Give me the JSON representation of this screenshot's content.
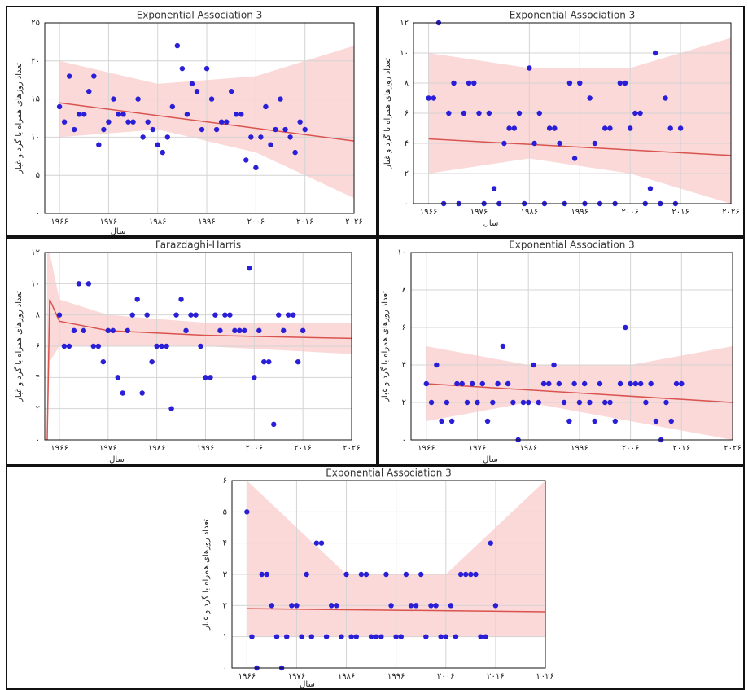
{
  "chart_data": [
    {
      "type": "scatter",
      "title": "Exponential Association 3",
      "xlabel": "سال",
      "ylabel": "تعداد روزهای همراه با گرد و غبار",
      "xlim": [
        1963,
        2026
      ],
      "ylim": [
        0,
        25
      ],
      "xticks": [
        {
          "value": 1966,
          "label": "۱۹۶۶"
        },
        {
          "value": 1976,
          "label": "۱۹۷۶"
        },
        {
          "value": 1986,
          "label": "۱۹۸۶"
        },
        {
          "value": 1996,
          "label": "۱۹۹۶"
        },
        {
          "value": 2006,
          "label": "۲۰۰۶"
        },
        {
          "value": 2016,
          "label": "۲۰۱۶"
        },
        {
          "value": 2026,
          "label": "۲۰۲۶"
        }
      ],
      "yticks": [
        {
          "value": 0,
          "label": "۰"
        },
        {
          "value": 5,
          "label": "۵"
        },
        {
          "value": 10,
          "label": "۱۰"
        },
        {
          "value": 15,
          "label": "۱۵"
        },
        {
          "value": 20,
          "label": "۲۰"
        },
        {
          "value": 25,
          "label": "۲۵"
        }
      ],
      "points": {
        "color": "#2a1fd6",
        "x": [
          1966,
          1967,
          1968,
          1969,
          1970,
          1971,
          1972,
          1973,
          1974,
          1975,
          1976,
          1977,
          1978,
          1979,
          1980,
          1981,
          1982,
          1983,
          1984,
          1985,
          1986,
          1987,
          1988,
          1989,
          1990,
          1991,
          1992,
          1993,
          1994,
          1995,
          1996,
          1997,
          1998,
          1999,
          2000,
          2001,
          2002,
          2003,
          2004,
          2005,
          2006,
          2007,
          2008,
          2009,
          2010,
          2011,
          2012,
          2013,
          2014,
          2015,
          2016
        ],
        "y": [
          14,
          12,
          18,
          11,
          13,
          13,
          16,
          18,
          9,
          11,
          12,
          15,
          13,
          13,
          12,
          12,
          15,
          10,
          12,
          11,
          9,
          8,
          10,
          14,
          22,
          19,
          13,
          17,
          16,
          11,
          19,
          15,
          11,
          12,
          12,
          16,
          13,
          13,
          7,
          10,
          6,
          10,
          14,
          9,
          11,
          15,
          11,
          10,
          8,
          12,
          11
        ]
      },
      "fit": {
        "color": "#d9534f",
        "x": [
          1966,
          2026
        ],
        "y": [
          14.5,
          9.5
        ]
      },
      "band": {
        "color": "#f7b9b9",
        "x": [
          1966,
          1986,
          2006,
          2026
        ],
        "lower": [
          10,
          11,
          8,
          2
        ],
        "upper": [
          20,
          17,
          18,
          22
        ]
      }
    },
    {
      "type": "scatter",
      "title": "Exponential Association 3",
      "xlabel": "سال",
      "ylabel": "تعداد روزهای همراه با گرد و غبار",
      "xlim": [
        1963,
        2026
      ],
      "ylim": [
        0,
        12
      ],
      "xticks": [
        {
          "value": 1966,
          "label": "۱۹۶۶"
        },
        {
          "value": 1976,
          "label": "۱۹۷۶"
        },
        {
          "value": 1986,
          "label": "۱۹۸۶"
        },
        {
          "value": 1996,
          "label": "۱۹۹۶"
        },
        {
          "value": 2006,
          "label": "۲۰۰۶"
        },
        {
          "value": 2016,
          "label": "۲۰۱۶"
        },
        {
          "value": 2026,
          "label": "۲۰۲۶"
        }
      ],
      "yticks": [
        {
          "value": 0,
          "label": "۰"
        },
        {
          "value": 2,
          "label": "۲"
        },
        {
          "value": 4,
          "label": "۴"
        },
        {
          "value": 6,
          "label": "۶"
        },
        {
          "value": 8,
          "label": "۸"
        },
        {
          "value": 10,
          "label": "۱۰"
        },
        {
          "value": 12,
          "label": "۱۲"
        }
      ],
      "points": {
        "color": "#2a1fd6",
        "x": [
          1966,
          1967,
          1968,
          1969,
          1970,
          1971,
          1972,
          1973,
          1974,
          1975,
          1976,
          1977,
          1978,
          1979,
          1980,
          1981,
          1982,
          1983,
          1984,
          1985,
          1986,
          1987,
          1988,
          1989,
          1990,
          1991,
          1992,
          1993,
          1994,
          1995,
          1996,
          1997,
          1998,
          1999,
          2000,
          2001,
          2002,
          2003,
          2004,
          2005,
          2006,
          2007,
          2008,
          2009,
          2010,
          2011,
          2012,
          2013,
          2014,
          2015,
          2016
        ],
        "y": [
          7,
          7,
          12,
          0,
          6,
          8,
          0,
          6,
          8,
          8,
          6,
          0,
          6,
          1,
          0,
          4,
          5,
          5,
          6,
          0,
          9,
          4,
          6,
          0,
          5,
          5,
          4,
          0,
          8,
          3,
          8,
          0,
          7,
          4,
          0,
          5,
          5,
          0,
          8,
          8,
          5,
          6,
          6,
          0,
          1,
          10,
          0,
          7,
          5,
          0,
          5
        ]
      },
      "fit": {
        "color": "#d9534f",
        "x": [
          1966,
          2026
        ],
        "y": [
          4.3,
          3.2
        ]
      },
      "band": {
        "color": "#f7b9b9",
        "x": [
          1966,
          1986,
          2006,
          2026
        ],
        "lower": [
          2,
          3,
          2,
          0
        ],
        "upper": [
          10,
          9,
          9,
          11
        ]
      }
    },
    {
      "type": "scatter",
      "title": "Farazdaghi-Harris",
      "xlabel": "سال",
      "ylabel": "تعداد روزهای همراه با گرد و غبار",
      "xlim": [
        1963,
        2026
      ],
      "ylim": [
        0,
        12
      ],
      "xticks": [
        {
          "value": 1966,
          "label": "۱۹۶۶"
        },
        {
          "value": 1976,
          "label": "۱۹۷۶"
        },
        {
          "value": 1986,
          "label": "۱۹۸۶"
        },
        {
          "value": 1996,
          "label": "۱۹۹۶"
        },
        {
          "value": 2006,
          "label": "۲۰۰۶"
        },
        {
          "value": 2016,
          "label": "۲۰۱۶"
        },
        {
          "value": 2026,
          "label": "۲۰۲۶"
        }
      ],
      "yticks": [
        {
          "value": 0,
          "label": "۰"
        },
        {
          "value": 2,
          "label": "۲"
        },
        {
          "value": 4,
          "label": "۴"
        },
        {
          "value": 6,
          "label": "۶"
        },
        {
          "value": 8,
          "label": "۸"
        },
        {
          "value": 10,
          "label": "۱۰"
        },
        {
          "value": 12,
          "label": "۱۲"
        }
      ],
      "points": {
        "color": "#2a1fd6",
        "x": [
          1966,
          1967,
          1968,
          1969,
          1970,
          1971,
          1972,
          1973,
          1974,
          1975,
          1976,
          1977,
          1978,
          1979,
          1980,
          1981,
          1982,
          1983,
          1984,
          1985,
          1986,
          1987,
          1988,
          1989,
          1990,
          1991,
          1992,
          1993,
          1994,
          1995,
          1996,
          1997,
          1998,
          1999,
          2000,
          2001,
          2002,
          2003,
          2004,
          2005,
          2006,
          2007,
          2008,
          2009,
          2010,
          2011,
          2012,
          2013,
          2014,
          2015,
          2016
        ],
        "y": [
          8,
          6,
          6,
          7,
          10,
          7,
          10,
          6,
          6,
          5,
          7,
          7,
          4,
          3,
          7,
          8,
          9,
          3,
          8,
          5,
          6,
          6,
          6,
          2,
          8,
          9,
          7,
          8,
          8,
          6,
          4,
          4,
          8,
          7,
          8,
          8,
          7,
          7,
          7,
          11,
          4,
          7,
          5,
          5,
          1,
          8,
          7,
          8,
          8,
          5,
          7
        ]
      },
      "fit": {
        "color": "#d9534f",
        "x": [
          1963.5,
          1964,
          1966,
          1976,
          1996,
          2026
        ],
        "y": [
          0,
          9,
          7.6,
          7,
          6.7,
          6.5
        ]
      },
      "band": {
        "color": "#f7b9b9",
        "x": [
          1963.5,
          1964,
          1966,
          1976,
          1996,
          2026
        ],
        "lower": [
          0,
          5,
          6,
          6,
          6,
          5.5
        ],
        "upper": [
          12,
          12,
          9,
          8,
          7.5,
          7.5
        ]
      }
    },
    {
      "type": "scatter",
      "title": "Exponential Association 3",
      "xlabel": "سال",
      "ylabel": "تعداد روزهای همراه با گرد و غبار",
      "xlim": [
        1963,
        2026
      ],
      "ylim": [
        0,
        10
      ],
      "xticks": [
        {
          "value": 1966,
          "label": "۱۹۶۶"
        },
        {
          "value": 1976,
          "label": "۱۹۷۶"
        },
        {
          "value": 1986,
          "label": "۱۹۸۶"
        },
        {
          "value": 1996,
          "label": "۱۹۹۶"
        },
        {
          "value": 2006,
          "label": "۲۰۰۶"
        },
        {
          "value": 2016,
          "label": "۲۰۱۶"
        },
        {
          "value": 2026,
          "label": "۲۰۲۶"
        }
      ],
      "yticks": [
        {
          "value": 0,
          "label": "۰"
        },
        {
          "value": 2,
          "label": "۲"
        },
        {
          "value": 4,
          "label": "۴"
        },
        {
          "value": 6,
          "label": "۶"
        },
        {
          "value": 8,
          "label": "۸"
        },
        {
          "value": 10,
          "label": "۱۰"
        }
      ],
      "points": {
        "color": "#2a1fd6",
        "x": [
          1966,
          1967,
          1968,
          1969,
          1970,
          1971,
          1972,
          1973,
          1974,
          1975,
          1976,
          1977,
          1978,
          1979,
          1980,
          1981,
          1982,
          1983,
          1984,
          1985,
          1986,
          1987,
          1988,
          1989,
          1990,
          1991,
          1992,
          1993,
          1994,
          1995,
          1996,
          1997,
          1998,
          1999,
          2000,
          2001,
          2002,
          2003,
          2004,
          2005,
          2006,
          2007,
          2008,
          2009,
          2010,
          2011,
          2012,
          2013,
          2014,
          2015,
          2016
        ],
        "y": [
          3,
          2,
          4,
          1,
          2,
          1,
          3,
          3,
          2,
          3,
          2,
          3,
          1,
          2,
          3,
          5,
          3,
          2,
          0,
          2,
          2,
          4,
          2,
          3,
          3,
          4,
          3,
          2,
          1,
          3,
          2,
          3,
          2,
          1,
          3,
          2,
          2,
          1,
          3,
          6,
          3,
          3,
          3,
          2,
          3,
          1,
          0,
          2,
          1,
          3,
          3
        ]
      },
      "fit": {
        "color": "#d9534f",
        "x": [
          1966,
          2026
        ],
        "y": [
          3,
          2
        ]
      },
      "band": {
        "color": "#f7b9b9",
        "x": [
          1966,
          1986,
          2006,
          2026
        ],
        "lower": [
          1,
          2,
          1,
          0
        ],
        "upper": [
          5,
          4,
          4,
          5
        ]
      }
    },
    {
      "type": "scatter",
      "title": "Exponential Association 3",
      "xlabel": "سال",
      "ylabel": "تعداد روزهای همراه با گرد و غبار",
      "xlim": [
        1963,
        2026
      ],
      "ylim": [
        0,
        6
      ],
      "xticks": [
        {
          "value": 1966,
          "label": "۱۹۶۶"
        },
        {
          "value": 1976,
          "label": "۱۹۷۶"
        },
        {
          "value": 1986,
          "label": "۱۹۸۶"
        },
        {
          "value": 1996,
          "label": "۱۹۹۶"
        },
        {
          "value": 2006,
          "label": "۲۰۰۶"
        },
        {
          "value": 2016,
          "label": "۲۰۱۶"
        },
        {
          "value": 2026,
          "label": "۲۰۲۶"
        }
      ],
      "yticks": [
        {
          "value": 0,
          "label": "۰"
        },
        {
          "value": 1,
          "label": "۱"
        },
        {
          "value": 2,
          "label": "۲"
        },
        {
          "value": 3,
          "label": "۳"
        },
        {
          "value": 4,
          "label": "۴"
        },
        {
          "value": 5,
          "label": "۵"
        },
        {
          "value": 6,
          "label": "۶"
        }
      ],
      "points": {
        "color": "#2a1fd6",
        "x": [
          1966,
          1967,
          1968,
          1969,
          1970,
          1971,
          1972,
          1973,
          1974,
          1975,
          1976,
          1977,
          1978,
          1979,
          1980,
          1981,
          1982,
          1983,
          1984,
          1985,
          1986,
          1987,
          1988,
          1989,
          1990,
          1991,
          1992,
          1993,
          1994,
          1995,
          1996,
          1997,
          1998,
          1999,
          2000,
          2001,
          2002,
          2003,
          2004,
          2005,
          2006,
          2007,
          2008,
          2009,
          2010,
          2011,
          2012,
          2013,
          2014,
          2015,
          2016
        ],
        "y": [
          5,
          1,
          0,
          3,
          3,
          2,
          1,
          0,
          1,
          2,
          2,
          1,
          3,
          1,
          4,
          4,
          1,
          2,
          2,
          1,
          3,
          1,
          1,
          3,
          3,
          1,
          1,
          1,
          3,
          2,
          1,
          1,
          3,
          2,
          2,
          3,
          1,
          2,
          2,
          1,
          1,
          2,
          1,
          3,
          3,
          3,
          3,
          1,
          1,
          4,
          2
        ]
      },
      "fit": {
        "color": "#d9534f",
        "x": [
          1966,
          2026
        ],
        "y": [
          1.9,
          1.8
        ]
      },
      "band": {
        "color": "#f7b9b9",
        "x": [
          1966,
          1986,
          2006,
          2026
        ],
        "lower": [
          1,
          1,
          1,
          1
        ],
        "upper": [
          6,
          3,
          3,
          6
        ]
      }
    }
  ]
}
